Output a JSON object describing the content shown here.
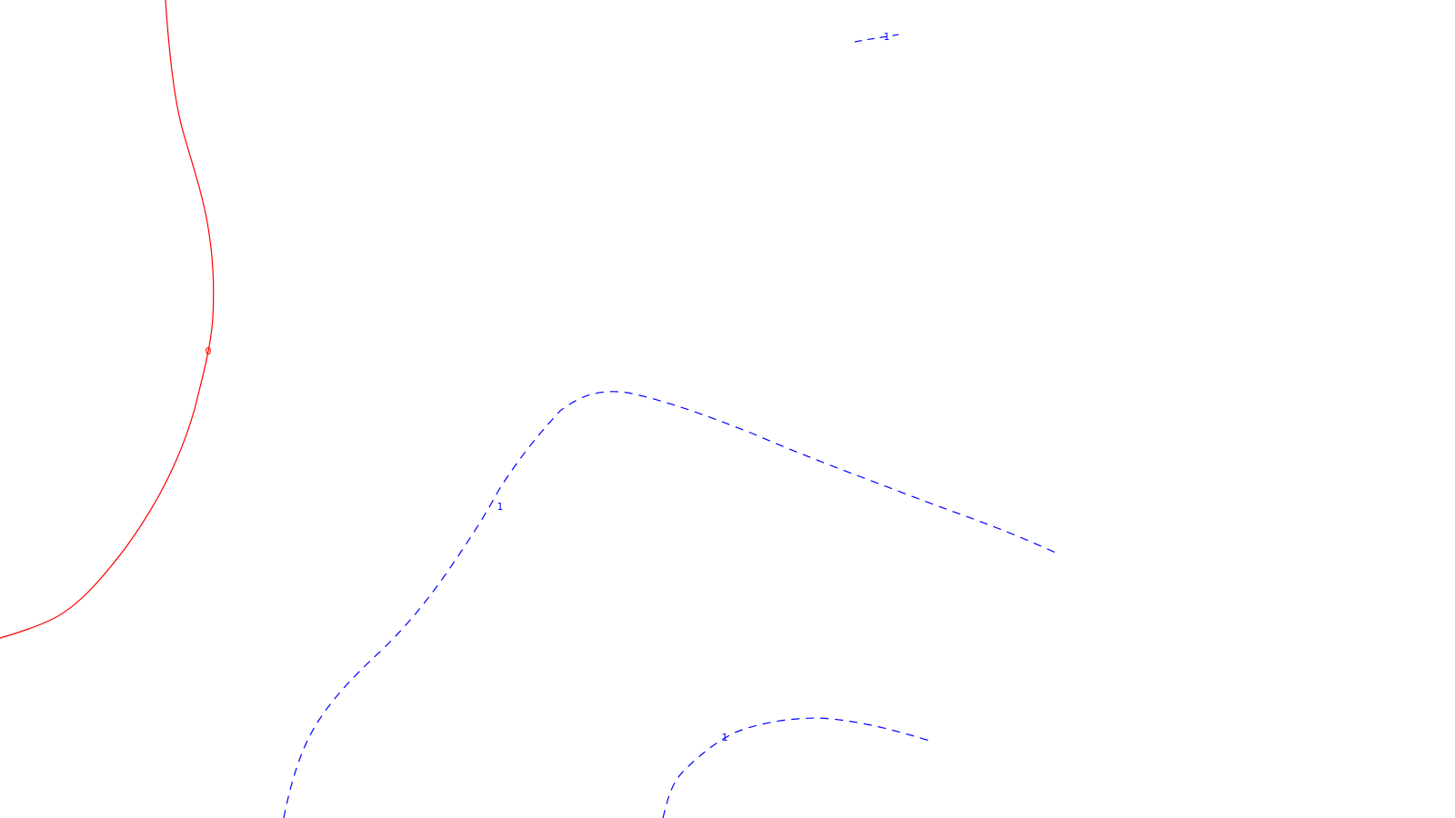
{
  "colors": {
    "background": "#ffffff",
    "zero_contour": "#ff0000",
    "positive_contour": "#0000ff"
  },
  "contours": [
    {
      "id": "zero",
      "level_label": "0",
      "style": "solid",
      "color": "#ff0000"
    },
    {
      "id": "top-small",
      "level_label": "1",
      "style": "dashed",
      "color": "#0000ff"
    },
    {
      "id": "middle-long",
      "level_label": "1",
      "style": "dashed",
      "color": "#0000ff"
    },
    {
      "id": "bottom-arc",
      "level_label": "1",
      "style": "dashed",
      "color": "#0000ff"
    }
  ]
}
